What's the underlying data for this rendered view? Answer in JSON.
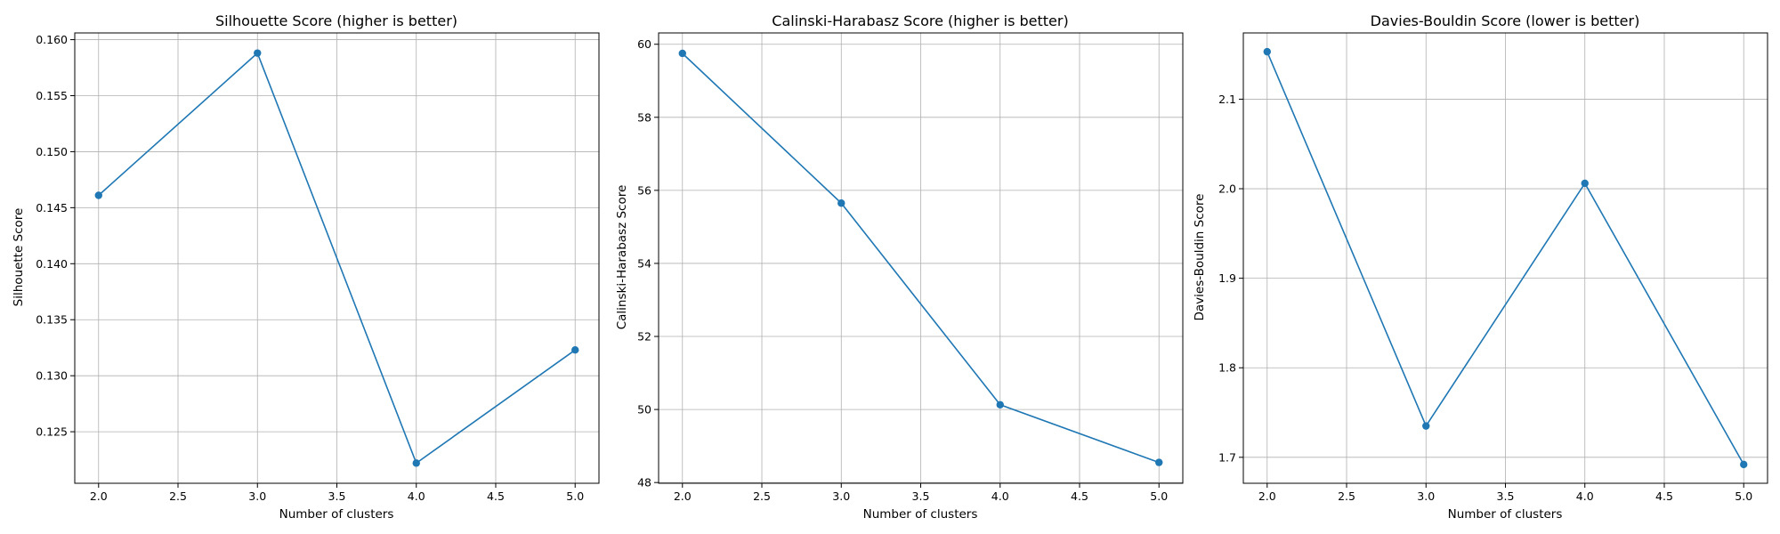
{
  "chart_data": [
    {
      "type": "line",
      "title": "Silhouette Score (higher is better)",
      "xlabel": "Number of clusters",
      "ylabel": "Silhouette Score",
      "x": [
        2,
        3,
        4,
        5
      ],
      "series": [
        {
          "values": [
            0.1461,
            0.1588,
            0.1222,
            0.1323
          ]
        }
      ],
      "xlim": [
        1.85,
        5.15
      ],
      "ylim": [
        0.1204,
        0.1606
      ],
      "xticks": [
        2.0,
        2.5,
        3.0,
        3.5,
        4.0,
        4.5,
        5.0
      ],
      "xtick_labels": [
        "2.0",
        "2.5",
        "3.0",
        "3.5",
        "4.0",
        "4.5",
        "5.0"
      ],
      "yticks": [
        0.125,
        0.13,
        0.135,
        0.14,
        0.145,
        0.15,
        0.155,
        0.16
      ],
      "ytick_labels": [
        "0.125",
        "0.130",
        "0.135",
        "0.140",
        "0.145",
        "0.150",
        "0.155",
        "0.160"
      ],
      "grid": true,
      "color": "#1f77b4"
    },
    {
      "type": "line",
      "title": "Calinski-Harabasz Score (higher is better)",
      "xlabel": "Number of clusters",
      "ylabel": "Calinski-Harabasz Score",
      "x": [
        2,
        3,
        4,
        5
      ],
      "series": [
        {
          "values": [
            59.75,
            55.65,
            50.13,
            48.55
          ]
        }
      ],
      "xlim": [
        1.85,
        5.15
      ],
      "ylim": [
        47.98,
        60.31
      ],
      "xticks": [
        2.0,
        2.5,
        3.0,
        3.5,
        4.0,
        4.5,
        5.0
      ],
      "xtick_labels": [
        "2.0",
        "2.5",
        "3.0",
        "3.5",
        "4.0",
        "4.5",
        "5.0"
      ],
      "yticks": [
        48,
        50,
        52,
        54,
        56,
        58,
        60
      ],
      "ytick_labels": [
        "48",
        "50",
        "52",
        "54",
        "56",
        "58",
        "60"
      ],
      "grid": true,
      "color": "#1f77b4"
    },
    {
      "type": "line",
      "title": "Davies-Bouldin Score (lower is better)",
      "xlabel": "Number of clusters",
      "ylabel": "Davies-Bouldin Score",
      "x": [
        2,
        3,
        4,
        5
      ],
      "series": [
        {
          "values": [
            2.153,
            1.735,
            2.006,
            1.692
          ]
        }
      ],
      "xlim": [
        1.85,
        5.15
      ],
      "ylim": [
        1.671,
        2.174
      ],
      "xticks": [
        2.0,
        2.5,
        3.0,
        3.5,
        4.0,
        4.5,
        5.0
      ],
      "xtick_labels": [
        "2.0",
        "2.5",
        "3.0",
        "3.5",
        "4.0",
        "4.5",
        "5.0"
      ],
      "yticks": [
        1.7,
        1.8,
        1.9,
        2.0,
        2.1
      ],
      "ytick_labels": [
        "1.7",
        "1.8",
        "1.9",
        "2.0",
        "2.1"
      ],
      "grid": true,
      "color": "#1f77b4"
    }
  ]
}
